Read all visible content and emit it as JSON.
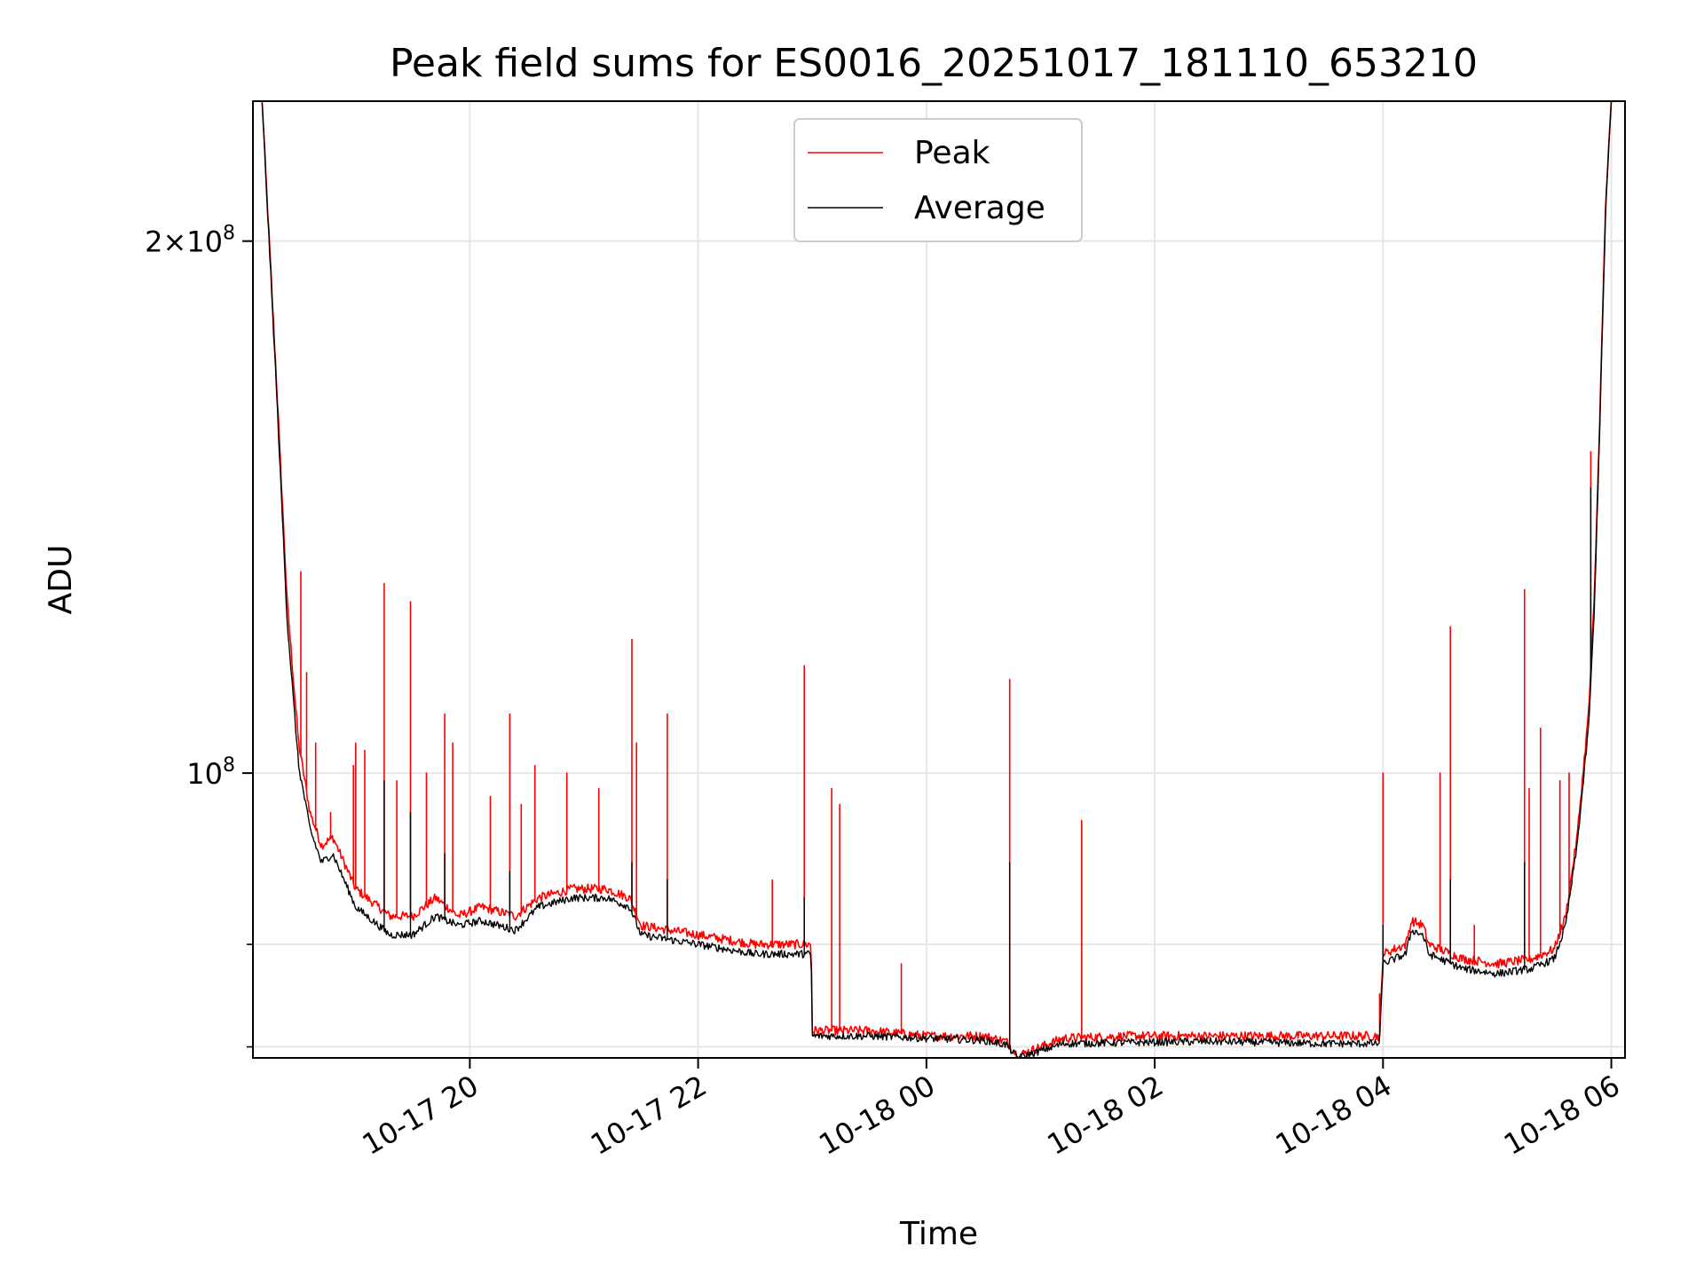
{
  "chart_data": {
    "type": "line",
    "title": "Peak field sums for ES0016_20251017_181110_653210",
    "xlabel": "Time",
    "ylabel": "ADU",
    "yscale": "log",
    "xlim": [
      18.1,
      30.12
    ],
    "ylim": [
      69000000,
      240000000
    ],
    "grid": true,
    "legend_position": "upper-center",
    "x_ticks": [
      {
        "value": 20,
        "label": "10-17 20"
      },
      {
        "value": 22,
        "label": "10-17 22"
      },
      {
        "value": 24,
        "label": "10-18 00"
      },
      {
        "value": 26,
        "label": "10-18 02"
      },
      {
        "value": 28,
        "label": "10-18 04"
      },
      {
        "value": 30,
        "label": "10-18 06"
      }
    ],
    "y_major_ticks": [
      {
        "value": 100000000,
        "mantissa": "",
        "base": "10",
        "exp": "8"
      },
      {
        "value": 200000000,
        "mantissa": "2×",
        "base": "10",
        "exp": "8"
      }
    ],
    "y_minor_ticks": [
      70000000,
      80000000
    ],
    "series": [
      {
        "name": "Peak",
        "color": "#ff0000",
        "base": [
          [
            18.18,
            240000000
          ],
          [
            18.3,
            170000000
          ],
          [
            18.4,
            125000000
          ],
          [
            18.5,
            104000000
          ],
          [
            18.6,
            95000000
          ],
          [
            18.7,
            91000000
          ],
          [
            18.8,
            92000000
          ],
          [
            19.0,
            86000000
          ],
          [
            19.3,
            83000000
          ],
          [
            19.5,
            83000000
          ],
          [
            19.7,
            85000000
          ],
          [
            19.9,
            83000000
          ],
          [
            20.1,
            84000000
          ],
          [
            20.4,
            83000000
          ],
          [
            20.6,
            85000000
          ],
          [
            20.9,
            86000000
          ],
          [
            21.2,
            86000000
          ],
          [
            21.4,
            85000000
          ],
          [
            21.5,
            82000000
          ],
          [
            22.0,
            81000000
          ],
          [
            22.5,
            80000000
          ],
          [
            22.99,
            80000000
          ],
          [
            23.0,
            71500000
          ],
          [
            23.5,
            71500000
          ],
          [
            24.0,
            71000000
          ],
          [
            24.5,
            71000000
          ],
          [
            24.7,
            70500000
          ],
          [
            24.8,
            69200000
          ],
          [
            25.2,
            70800000
          ],
          [
            25.8,
            71000000
          ],
          [
            26.5,
            71000000
          ],
          [
            27.5,
            71000000
          ],
          [
            27.97,
            71000000
          ],
          [
            28.0,
            79000000
          ],
          [
            28.2,
            80000000
          ],
          [
            28.25,
            82500000
          ],
          [
            28.35,
            82000000
          ],
          [
            28.4,
            80000000
          ],
          [
            28.7,
            78500000
          ],
          [
            29.0,
            78000000
          ],
          [
            29.3,
            78500000
          ],
          [
            29.5,
            79500000
          ],
          [
            29.6,
            83000000
          ],
          [
            29.7,
            92000000
          ],
          [
            29.8,
            108000000
          ],
          [
            29.85,
            125000000
          ],
          [
            29.9,
            160000000
          ],
          [
            29.95,
            210000000
          ],
          [
            30.0,
            240000000
          ]
        ],
        "spikes": [
          [
            18.52,
            130000000
          ],
          [
            18.57,
            114000000
          ],
          [
            18.65,
            104000000
          ],
          [
            18.78,
            95000000
          ],
          [
            18.98,
            101000000
          ],
          [
            19.0,
            104000000
          ],
          [
            19.08,
            103000000
          ],
          [
            19.25,
            128000000
          ],
          [
            19.36,
            99000000
          ],
          [
            19.48,
            125000000
          ],
          [
            19.62,
            100000000
          ],
          [
            19.78,
            108000000
          ],
          [
            19.85,
            104000000
          ],
          [
            20.18,
            97000000
          ],
          [
            20.35,
            108000000
          ],
          [
            20.45,
            96000000
          ],
          [
            20.57,
            101000000
          ],
          [
            20.85,
            100000000
          ],
          [
            21.13,
            98000000
          ],
          [
            21.42,
            119000000
          ],
          [
            21.46,
            104000000
          ],
          [
            21.73,
            108000000
          ],
          [
            22.65,
            87000000
          ],
          [
            22.93,
            115000000
          ],
          [
            23.17,
            98000000
          ],
          [
            23.24,
            96000000
          ],
          [
            23.78,
            78000000
          ],
          [
            24.73,
            113000000
          ],
          [
            25.36,
            94000000
          ],
          [
            27.97,
            75000000
          ],
          [
            28.0,
            100000000
          ],
          [
            28.5,
            100000000
          ],
          [
            28.59,
            121000000
          ],
          [
            28.8,
            82000000
          ],
          [
            29.24,
            127000000
          ],
          [
            29.28,
            98000000
          ],
          [
            29.38,
            106000000
          ],
          [
            29.55,
            99000000
          ],
          [
            29.63,
            100000000
          ],
          [
            29.82,
            152000000
          ]
        ]
      },
      {
        "name": "Average",
        "color": "#000000",
        "base": [
          [
            18.18,
            240000000
          ],
          [
            18.3,
            168000000
          ],
          [
            18.4,
            122000000
          ],
          [
            18.5,
            101000000
          ],
          [
            18.6,
            93000000
          ],
          [
            18.7,
            89000000
          ],
          [
            18.8,
            90000000
          ],
          [
            19.0,
            84000000
          ],
          [
            19.3,
            81000000
          ],
          [
            19.5,
            81000000
          ],
          [
            19.7,
            83000000
          ],
          [
            19.9,
            82000000
          ],
          [
            20.1,
            82500000
          ],
          [
            20.4,
            81500000
          ],
          [
            20.6,
            84000000
          ],
          [
            20.9,
            85000000
          ],
          [
            21.2,
            85000000
          ],
          [
            21.4,
            84000000
          ],
          [
            21.5,
            81000000
          ],
          [
            22.0,
            80000000
          ],
          [
            22.5,
            79000000
          ],
          [
            22.99,
            79000000
          ],
          [
            23.0,
            71000000
          ],
          [
            23.5,
            71000000
          ],
          [
            24.0,
            70800000
          ],
          [
            24.5,
            70600000
          ],
          [
            24.7,
            70200000
          ],
          [
            24.8,
            69000000
          ],
          [
            25.2,
            70300000
          ],
          [
            25.8,
            70400000
          ],
          [
            26.5,
            70500000
          ],
          [
            27.5,
            70300000
          ],
          [
            27.97,
            70300000
          ],
          [
            28.0,
            78000000
          ],
          [
            28.2,
            79000000
          ],
          [
            28.25,
            81500000
          ],
          [
            28.35,
            81000000
          ],
          [
            28.4,
            79000000
          ],
          [
            28.7,
            77500000
          ],
          [
            29.0,
            77000000
          ],
          [
            29.3,
            77500000
          ],
          [
            29.5,
            78500000
          ],
          [
            29.6,
            82000000
          ],
          [
            29.7,
            91000000
          ],
          [
            29.8,
            106000000
          ],
          [
            29.85,
            123000000
          ],
          [
            29.9,
            158000000
          ],
          [
            29.95,
            208000000
          ],
          [
            30.0,
            240000000
          ]
        ],
        "spikes": [
          [
            19.25,
            99000000
          ],
          [
            19.48,
            95000000
          ],
          [
            19.78,
            90000000
          ],
          [
            20.35,
            88000000
          ],
          [
            21.42,
            89000000
          ],
          [
            21.73,
            87000000
          ],
          [
            22.93,
            85000000
          ],
          [
            24.73,
            89000000
          ],
          [
            28.0,
            82000000
          ],
          [
            28.59,
            87000000
          ],
          [
            29.24,
            89000000
          ],
          [
            29.82,
            145000000
          ]
        ]
      }
    ]
  }
}
